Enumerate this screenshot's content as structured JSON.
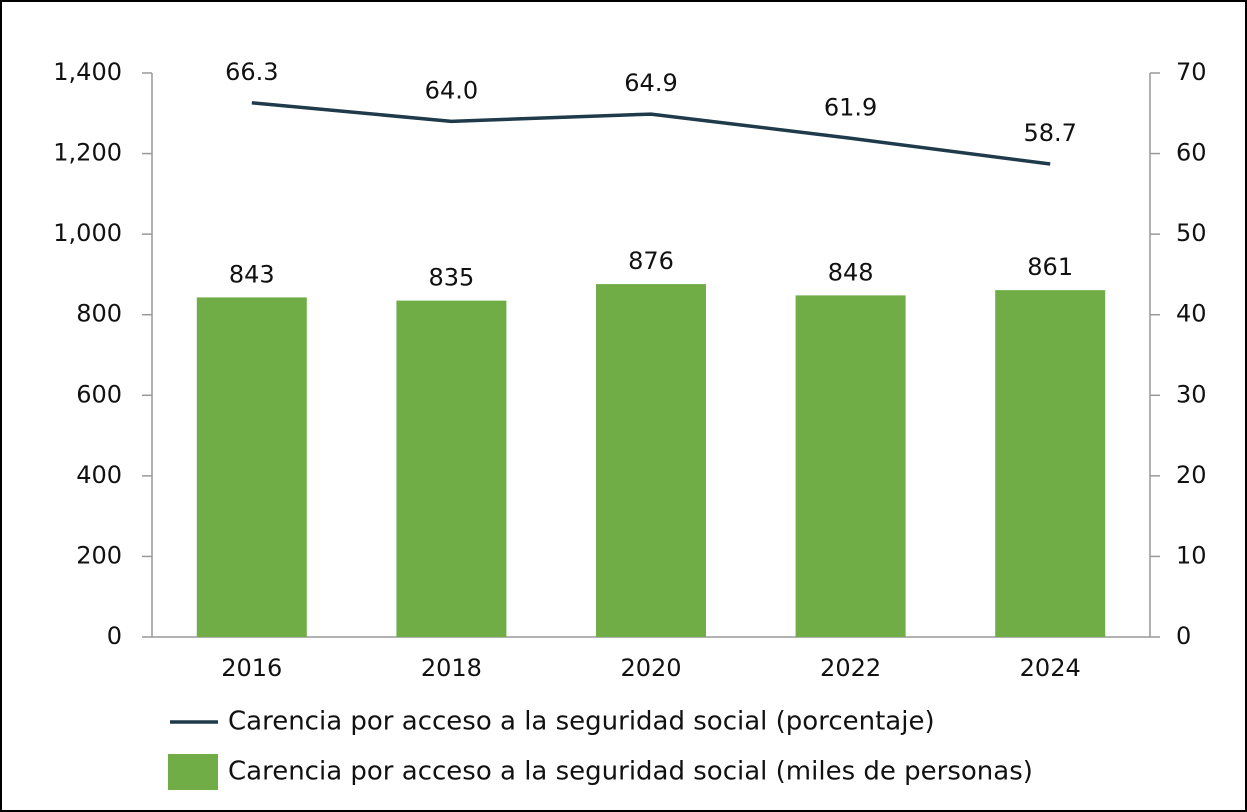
{
  "chart_data": {
    "type": "bar",
    "categories": [
      "2016",
      "2018",
      "2020",
      "2022",
      "2024"
    ],
    "series": [
      {
        "name": "Carencia por acceso a la seguridad social (porcentaje)",
        "type": "line",
        "axis": "y2",
        "color": "#1f3a4a",
        "values": [
          66.3,
          64.0,
          64.9,
          61.9,
          58.7
        ],
        "value_labels": [
          "66.3",
          "64.0",
          "64.9",
          "61.9",
          "58.7"
        ]
      },
      {
        "name": "Carencia por acceso a la seguridad social (miles de personas)",
        "type": "bar",
        "color": "#70ad47",
        "values": [
          843,
          835,
          876,
          848,
          861
        ]
      }
    ],
    "ylim": [
      0,
      1400
    ],
    "yticks": [
      0,
      200,
      400,
      600,
      800,
      {
        "value": 1000,
        "label": "1,000"
      },
      {
        "value": 1200,
        "label": "1,200"
      },
      {
        "value": 1400,
        "label": "1,400"
      }
    ],
    "y2lim": [
      0,
      70
    ],
    "y2ticks": [
      0,
      10,
      20,
      30,
      40,
      50,
      60,
      70
    ],
    "grid": false
  }
}
